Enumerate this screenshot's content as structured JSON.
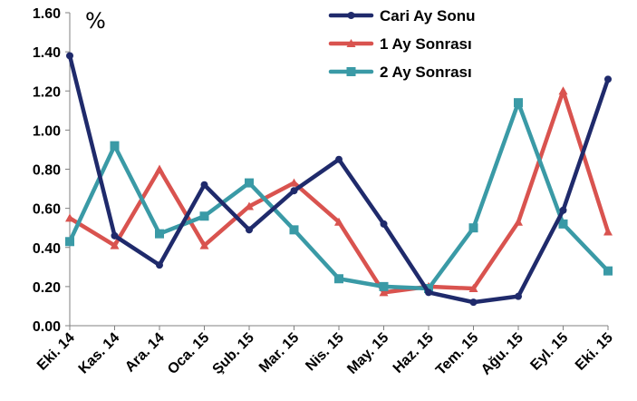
{
  "chart_data": {
    "type": "line",
    "unit_label": "%",
    "categories": [
      "Eki. 14",
      "Kas. 14",
      "Ara. 14",
      "Oca. 15",
      "Şub. 15",
      "Mar. 15",
      "Nis. 15",
      "May. 15",
      "Haz. 15",
      "Tem. 15",
      "Ağu. 15",
      "Eyl. 15",
      "Eki. 15"
    ],
    "ylim": [
      0,
      1.6
    ],
    "yticks": [
      "0.00",
      "0.20",
      "0.40",
      "0.60",
      "0.80",
      "1.00",
      "1.20",
      "1.40",
      "1.60"
    ],
    "grid": false,
    "legend_position": "top-right",
    "series": [
      {
        "name": "Cari Ay Sonu",
        "color": "#1f2a6b",
        "marker": "circle",
        "values": [
          1.38,
          0.46,
          0.31,
          0.72,
          0.49,
          0.69,
          0.85,
          0.52,
          0.17,
          0.12,
          0.15,
          0.59,
          1.26
        ]
      },
      {
        "name": "1 Ay Sonrası",
        "color": "#d9534f",
        "marker": "triangle",
        "values": [
          0.55,
          0.41,
          0.8,
          0.41,
          0.61,
          0.73,
          0.53,
          0.17,
          0.2,
          0.19,
          0.53,
          1.2,
          0.48
        ]
      },
      {
        "name": "2 Ay Sonrası",
        "color": "#3a9aa6",
        "marker": "square",
        "values": [
          0.43,
          0.92,
          0.47,
          0.56,
          0.73,
          0.49,
          0.24,
          0.2,
          0.19,
          0.5,
          1.14,
          0.52,
          0.28
        ]
      }
    ]
  }
}
